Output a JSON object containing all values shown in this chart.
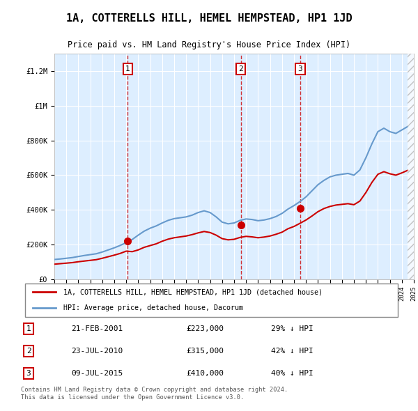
{
  "title": "1A, COTTERELLS HILL, HEMEL HEMPSTEAD, HP1 1JD",
  "subtitle": "Price paid vs. HM Land Registry's House Price Index (HPI)",
  "bg_color": "#ddeeff",
  "plot_bg_color": "#ddeeff",
  "hpi_color": "#6699cc",
  "price_color": "#cc0000",
  "legend_label_price": "1A, COTTERELLS HILL, HEMEL HEMPSTEAD, HP1 1JD (detached house)",
  "legend_label_hpi": "HPI: Average price, detached house, Dacorum",
  "footer": "Contains HM Land Registry data © Crown copyright and database right 2024.\nThis data is licensed under the Open Government Licence v3.0.",
  "transactions": [
    {
      "num": 1,
      "date": "21-FEB-2001",
      "price": 223000,
      "pct": "29% ↓ HPI",
      "x_year": 2001.13
    },
    {
      "num": 2,
      "date": "23-JUL-2010",
      "price": 315000,
      "pct": "42% ↓ HPI",
      "x_year": 2010.56
    },
    {
      "num": 3,
      "date": "09-JUL-2015",
      "price": 410000,
      "pct": "40% ↓ HPI",
      "x_year": 2015.52
    }
  ],
  "hpi_data": {
    "years": [
      1995,
      1995.5,
      1996,
      1996.5,
      1997,
      1997.5,
      1998,
      1998.5,
      1999,
      1999.5,
      2000,
      2000.5,
      2001,
      2001.5,
      2002,
      2002.5,
      2003,
      2003.5,
      2004,
      2004.5,
      2005,
      2005.5,
      2006,
      2006.5,
      2007,
      2007.5,
      2008,
      2008.5,
      2009,
      2009.5,
      2010,
      2010.5,
      2011,
      2011.5,
      2012,
      2012.5,
      2013,
      2013.5,
      2014,
      2014.5,
      2015,
      2015.5,
      2016,
      2016.5,
      2017,
      2017.5,
      2018,
      2018.5,
      2019,
      2019.5,
      2020,
      2020.5,
      2021,
      2021.5,
      2022,
      2022.5,
      2023,
      2023.5,
      2024,
      2024.5
    ],
    "values": [
      115000,
      118000,
      122000,
      126000,
      132000,
      138000,
      143000,
      148000,
      158000,
      170000,
      182000,
      196000,
      212000,
      230000,
      255000,
      278000,
      295000,
      308000,
      325000,
      340000,
      350000,
      355000,
      360000,
      370000,
      385000,
      395000,
      385000,
      360000,
      330000,
      320000,
      325000,
      340000,
      348000,
      345000,
      338000,
      342000,
      350000,
      362000,
      380000,
      405000,
      425000,
      448000,
      475000,
      510000,
      545000,
      570000,
      590000,
      600000,
      605000,
      610000,
      600000,
      630000,
      700000,
      780000,
      850000,
      870000,
      850000,
      840000,
      860000,
      880000
    ]
  },
  "price_data": {
    "years": [
      1995,
      1995.5,
      1996,
      1996.5,
      1997,
      1997.5,
      1998,
      1998.5,
      1999,
      1999.5,
      2000,
      2000.5,
      2001,
      2001.5,
      2002,
      2002.5,
      2003,
      2003.5,
      2004,
      2004.5,
      2005,
      2005.5,
      2006,
      2006.5,
      2007,
      2007.5,
      2008,
      2008.5,
      2009,
      2009.5,
      2010,
      2010.5,
      2011,
      2011.5,
      2012,
      2012.5,
      2013,
      2013.5,
      2014,
      2014.5,
      2015,
      2015.5,
      2016,
      2016.5,
      2017,
      2017.5,
      2018,
      2018.5,
      2019,
      2019.5,
      2020,
      2020.5,
      2021,
      2021.5,
      2022,
      2022.5,
      2023,
      2023.5,
      2024,
      2024.5
    ],
    "values": [
      88000,
      91000,
      94000,
      97000,
      102000,
      106000,
      110000,
      114000,
      122000,
      131000,
      140000,
      150000,
      163000,
      160000,
      170000,
      185000,
      195000,
      205000,
      220000,
      232000,
      240000,
      245000,
      250000,
      258000,
      268000,
      276000,
      270000,
      255000,
      235000,
      228000,
      231000,
      242000,
      248000,
      245000,
      240000,
      244000,
      250000,
      260000,
      272000,
      292000,
      305000,
      323000,
      342000,
      365000,
      390000,
      408000,
      420000,
      428000,
      432000,
      436000,
      430000,
      451000,
      500000,
      558000,
      605000,
      620000,
      608000,
      600000,
      613000,
      628000
    ]
  },
  "ylim": [
    0,
    1300000
  ],
  "xlim_start": 1995,
  "xlim_end": 2025
}
